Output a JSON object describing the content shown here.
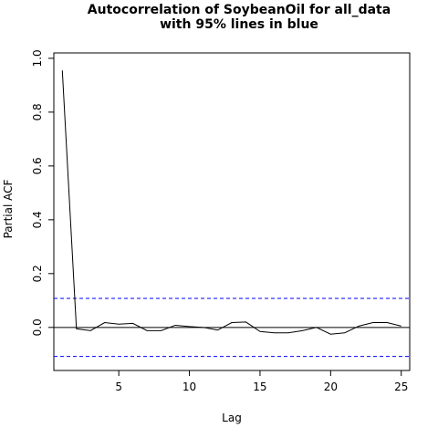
{
  "chart_data": {
    "type": "line",
    "title_line1": "Autocorrelation of SoybeanOil for all_data",
    "title_line2": "with 95% lines in blue",
    "xlabel": "Lag",
    "ylabel": "Partial ACF",
    "xlim": [
      0.4,
      25.6
    ],
    "ylim": [
      -0.16,
      1.02
    ],
    "xticks": [
      5,
      10,
      15,
      20,
      25
    ],
    "yticks": [
      0.0,
      0.2,
      0.4,
      0.6,
      0.8,
      1.0
    ],
    "ytick_labels": [
      "0.0",
      "0.2",
      "0.4",
      "0.6",
      "0.8",
      "1.0"
    ],
    "grid": false,
    "legend": "none",
    "confidence_bounds": [
      0.108,
      -0.108
    ],
    "confidence_color": "#0000ff",
    "line_color": "#000000",
    "x": [
      1,
      2,
      3,
      4,
      5,
      6,
      7,
      8,
      9,
      10,
      11,
      12,
      13,
      14,
      15,
      16,
      17,
      18,
      19,
      20,
      21,
      22,
      23,
      24,
      25
    ],
    "values": [
      0.955,
      -0.005,
      -0.012,
      0.018,
      0.012,
      0.015,
      -0.012,
      -0.012,
      0.008,
      0.003,
      0.0,
      -0.01,
      0.018,
      0.02,
      -0.015,
      -0.02,
      -0.02,
      -0.012,
      0.0,
      -0.025,
      -0.02,
      0.005,
      0.018,
      0.018,
      0.005
    ]
  }
}
